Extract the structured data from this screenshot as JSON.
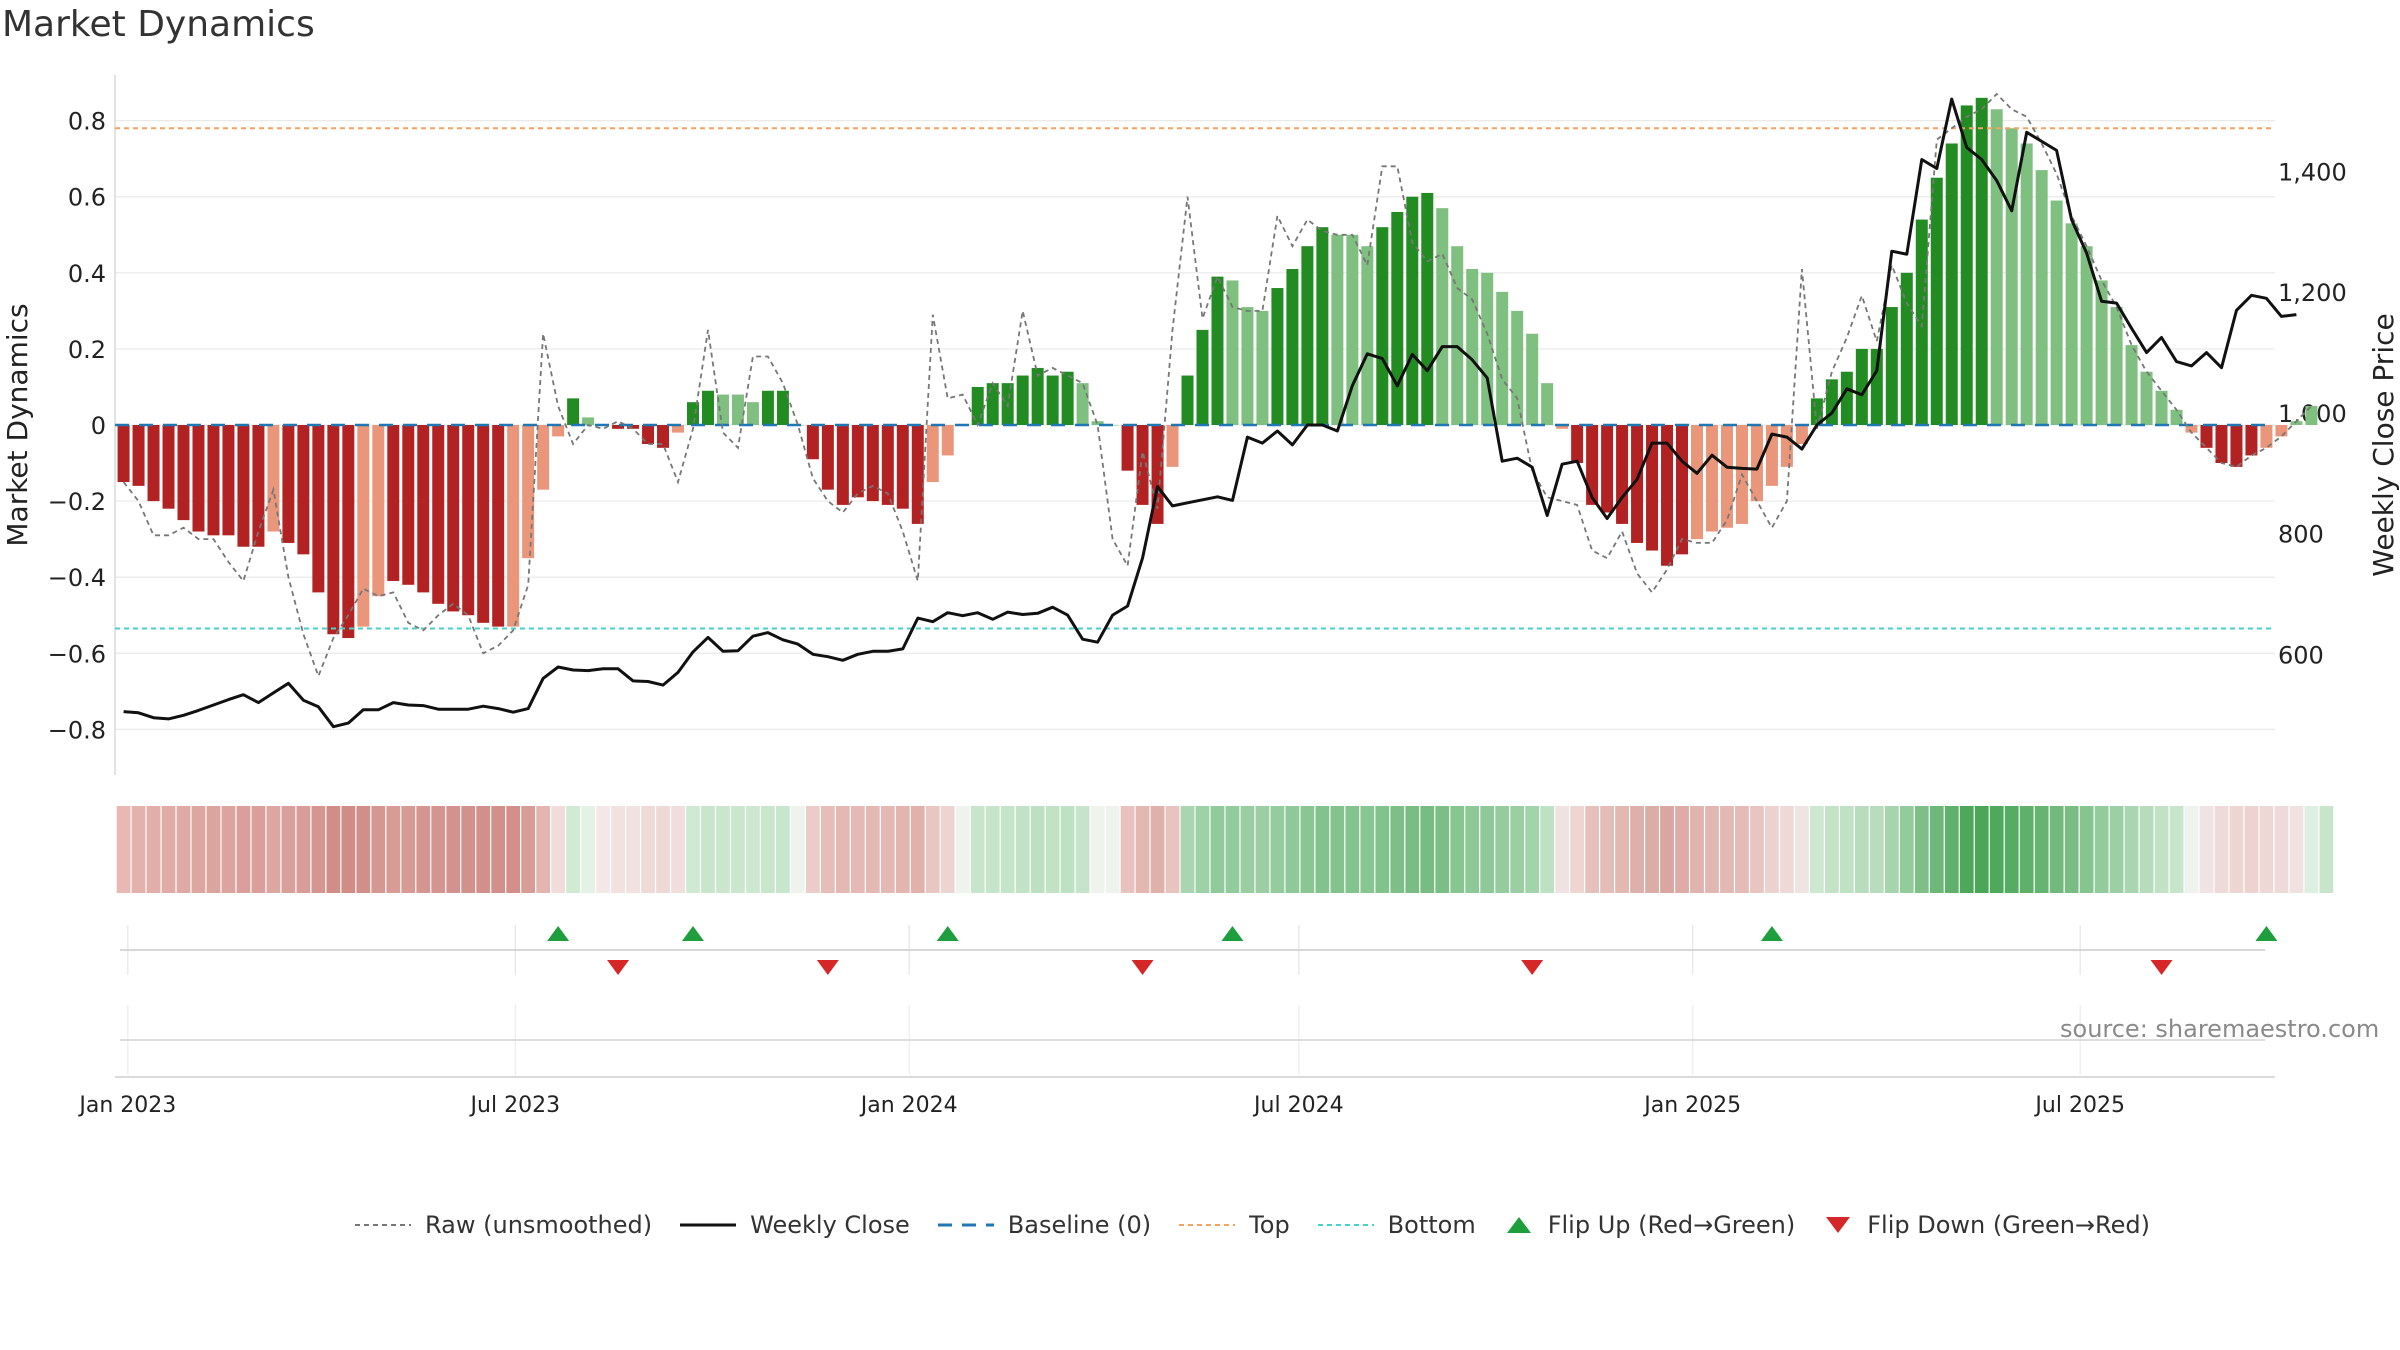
{
  "chart_title": "Market Dynamics",
  "source_text": "source: sharemaestro.com",
  "legend": {
    "raw": "Raw (unsmoothed)",
    "close": "Weekly Close",
    "baseline": "Baseline (0)",
    "top": "Top",
    "bottom": "Bottom",
    "flip_up": "Flip Up (Red→Green)",
    "flip_down": "Flip Down (Green→Red)"
  },
  "colors": {
    "strong_red": "#b22222",
    "weak_red": "#e9967a",
    "strong_green": "#228b22",
    "weak_green": "#7fbf7f",
    "raw": "#777777",
    "close": "#111111",
    "baseline": "#1f77b4",
    "top": "#f4a460",
    "bottom": "#48d1cc",
    "flip_up": "#1e9e3c",
    "flip_down": "#d62728"
  },
  "chart_data": {
    "type": "bar",
    "title": "Market Dynamics",
    "ylabel_left": "Market Dynamics",
    "ylabel_right": "Weekly Close Price",
    "ylim_left": [
      -0.92,
      0.92
    ],
    "ylim_right": [
      400,
      1560
    ],
    "yticks_left": [
      -0.8,
      -0.6,
      -0.4,
      -0.2,
      0,
      0.2,
      0.4,
      0.6,
      0.8
    ],
    "ytick_labels_left": [
      "−0.8",
      "−0.6",
      "−0.4",
      "−0.2",
      "0",
      "0.2",
      "0.4",
      "0.6",
      "0.8"
    ],
    "yticks_right": [
      600,
      800,
      1000,
      1200,
      1400
    ],
    "ytick_labels_right": [
      "600",
      "800",
      "1,000",
      "1,200",
      "1,400"
    ],
    "x_start": "2022-12-26",
    "x_end": "2025-09-30",
    "x_ticks": [
      {
        "date": "2023-01-01",
        "label": "Jan 2023"
      },
      {
        "date": "2023-07-01",
        "label": "Jul 2023"
      },
      {
        "date": "2024-01-01",
        "label": "Jan 2024"
      },
      {
        "date": "2024-07-01",
        "label": "Jul 2024"
      },
      {
        "date": "2025-01-01",
        "label": "Jan 2025"
      },
      {
        "date": "2025-07-01",
        "label": "Jul 2025"
      }
    ],
    "grid": true,
    "legend_position": "bottom",
    "first_week": "2022-12-30",
    "top_level": 0.78,
    "bottom_level": -0.535,
    "baseline_level": 0,
    "bar_values": [
      -0.15,
      -0.16,
      -0.2,
      -0.22,
      -0.25,
      -0.28,
      -0.29,
      -0.29,
      -0.32,
      -0.32,
      -0.28,
      -0.31,
      -0.34,
      -0.44,
      -0.55,
      -0.56,
      -0.53,
      -0.45,
      -0.41,
      -0.42,
      -0.44,
      -0.47,
      -0.49,
      -0.5,
      -0.52,
      -0.53,
      -0.53,
      -0.35,
      -0.17,
      -0.03,
      0.07,
      0.02,
      0.0,
      -0.01,
      -0.01,
      -0.05,
      -0.06,
      -0.02,
      0.06,
      0.09,
      0.08,
      0.08,
      0.06,
      0.09,
      0.09,
      0.0,
      -0.09,
      -0.17,
      -0.21,
      -0.19,
      -0.2,
      -0.21,
      -0.22,
      -0.26,
      -0.15,
      -0.08,
      0.0,
      0.1,
      0.11,
      0.11,
      0.13,
      0.15,
      0.13,
      0.14,
      0.11,
      0.01,
      0.0,
      -0.12,
      -0.21,
      -0.26,
      -0.11,
      0.13,
      0.25,
      0.39,
      0.38,
      0.31,
      0.3,
      0.36,
      0.41,
      0.47,
      0.52,
      0.5,
      0.5,
      0.47,
      0.52,
      0.56,
      0.6,
      0.61,
      0.57,
      0.47,
      0.41,
      0.4,
      0.35,
      0.3,
      0.24,
      0.11,
      -0.01,
      -0.1,
      -0.21,
      -0.23,
      -0.26,
      -0.31,
      -0.33,
      -0.37,
      -0.34,
      -0.3,
      -0.28,
      -0.27,
      -0.26,
      -0.2,
      -0.16,
      -0.11,
      -0.05,
      0.07,
      0.12,
      0.14,
      0.2,
      0.2,
      0.31,
      0.4,
      0.54,
      0.65,
      0.74,
      0.84,
      0.86,
      0.83,
      0.78,
      0.74,
      0.67,
      0.59,
      0.53,
      0.47,
      0.38,
      0.31,
      0.21,
      0.14,
      0.09,
      0.04,
      -0.02,
      -0.06,
      -0.1,
      -0.11,
      -0.08,
      -0.06,
      -0.03,
      0.01,
      0.05
    ],
    "bar_strength": [
      "s",
      "s",
      "s",
      "s",
      "s",
      "s",
      "s",
      "s",
      "s",
      "s",
      "w",
      "s",
      "s",
      "s",
      "s",
      "s",
      "w",
      "w",
      "s",
      "s",
      "s",
      "s",
      "s",
      "s",
      "s",
      "s",
      "w",
      "w",
      "w",
      "w",
      "s",
      "w",
      "w",
      "s",
      "s",
      "s",
      "s",
      "w",
      "s",
      "s",
      "w",
      "w",
      "w",
      "s",
      "s",
      "w",
      "s",
      "s",
      "s",
      "s",
      "s",
      "s",
      "s",
      "s",
      "w",
      "w",
      "w",
      "s",
      "s",
      "s",
      "s",
      "s",
      "s",
      "s",
      "w",
      "w",
      "w",
      "s",
      "s",
      "s",
      "w",
      "s",
      "s",
      "s",
      "w",
      "w",
      "w",
      "s",
      "s",
      "s",
      "s",
      "w",
      "w",
      "w",
      "s",
      "s",
      "s",
      "s",
      "w",
      "w",
      "w",
      "w",
      "w",
      "w",
      "w",
      "w",
      "w",
      "s",
      "s",
      "s",
      "s",
      "s",
      "s",
      "s",
      "s",
      "w",
      "w",
      "w",
      "w",
      "w",
      "w",
      "w",
      "w",
      "s",
      "s",
      "s",
      "s",
      "s",
      "s",
      "s",
      "s",
      "s",
      "s",
      "s",
      "s",
      "w",
      "w",
      "w",
      "w",
      "w",
      "w",
      "w",
      "w",
      "w",
      "w",
      "w",
      "w",
      "w",
      "w",
      "s",
      "s",
      "s",
      "s",
      "w",
      "w",
      "w",
      "w",
      "s",
      "w"
    ],
    "raw_values": [
      -0.15,
      -0.2,
      -0.29,
      -0.29,
      -0.27,
      -0.3,
      -0.3,
      -0.36,
      -0.41,
      -0.28,
      -0.17,
      -0.4,
      -0.55,
      -0.66,
      -0.56,
      -0.5,
      -0.43,
      -0.45,
      -0.44,
      -0.52,
      -0.54,
      -0.5,
      -0.47,
      -0.5,
      -0.6,
      -0.58,
      -0.54,
      -0.42,
      0.24,
      0.05,
      -0.05,
      0.0,
      -0.01,
      0.01,
      -0.01,
      -0.05,
      -0.05,
      -0.15,
      -0.01,
      0.25,
      -0.02,
      -0.06,
      0.18,
      0.18,
      0.11,
      0.0,
      -0.14,
      -0.2,
      -0.23,
      -0.18,
      -0.16,
      -0.18,
      -0.28,
      -0.41,
      0.29,
      0.07,
      0.08,
      0.0,
      0.11,
      0.05,
      0.3,
      0.13,
      0.15,
      0.13,
      0.11,
      0.0,
      -0.3,
      -0.37,
      -0.07,
      -0.22,
      0.25,
      0.6,
      0.28,
      0.39,
      0.31,
      0.3,
      0.3,
      0.55,
      0.47,
      0.54,
      0.51,
      0.5,
      0.5,
      0.42,
      0.68,
      0.68,
      0.48,
      0.43,
      0.45,
      0.36,
      0.33,
      0.24,
      0.12,
      0.07,
      -0.12,
      -0.19,
      -0.2,
      -0.21,
      -0.33,
      -0.35,
      -0.28,
      -0.39,
      -0.44,
      -0.38,
      -0.3,
      -0.31,
      -0.31,
      -0.25,
      -0.13,
      -0.2,
      -0.27,
      -0.2,
      0.41,
      -0.01,
      0.14,
      0.23,
      0.34,
      0.22,
      0.42,
      0.32,
      0.26,
      0.75,
      0.78,
      0.81,
      0.83,
      0.87,
      0.83,
      0.81,
      0.74,
      0.66,
      0.55,
      0.47,
      0.38,
      0.31,
      0.21,
      0.14,
      0.09,
      0.04,
      -0.02,
      -0.06,
      -0.1,
      -0.11,
      -0.08,
      -0.06,
      -0.03,
      0.01,
      0.05
    ],
    "close_values": [
      505,
      503,
      495,
      493,
      499,
      507,
      516,
      525,
      533,
      520,
      536,
      552,
      524,
      513,
      480,
      486,
      508,
      508,
      520,
      516,
      515,
      509,
      509,
      509,
      514,
      510,
      504,
      510,
      560,
      579,
      574,
      573,
      576,
      576,
      556,
      555,
      549,
      570,
      604,
      628,
      605,
      606,
      630,
      636,
      624,
      617,
      600,
      596,
      590,
      600,
      605,
      605,
      609,
      660,
      654,
      669,
      664,
      669,
      658,
      670,
      666,
      668,
      678,
      665,
      625,
      620,
      665,
      680,
      760,
      878,
      846,
      851,
      856,
      861,
      855,
      960,
      950,
      970,
      947,
      980,
      980,
      970,
      1045,
      1098,
      1090,
      1045,
      1097,
      1070,
      1110,
      1110,
      1088,
      1058,
      920,
      925,
      910,
      830,
      915,
      920,
      860,
      825,
      860,
      890,
      950,
      950,
      920,
      900,
      930,
      910,
      908,
      907,
      965,
      960,
      940,
      980,
      1000,
      1040,
      1030,
      1070,
      1268,
      1263,
      1420,
      1405,
      1520,
      1440,
      1420,
      1385,
      1335,
      1465,
      1450,
      1435,
      1320,
      1265,
      1185,
      1182,
      1140,
      1100,
      1125,
      1085,
      1078,
      1100,
      1075,
      1170,
      1195,
      1190,
      1160,
      1163
    ],
    "band_hex": [
      "#e7b8b4",
      "#e3b2ad",
      "#e1aeaa",
      "#e0aca7",
      "#ddaaa5",
      "#dca6a1",
      "#dba49f",
      "#dba49f",
      "#da9f9a",
      "#da9f9a",
      "#dca6a1",
      "#d99f9b",
      "#d89d98",
      "#d59690",
      "#d18e88",
      "#d18c86",
      "#d08f88",
      "#d59791",
      "#d89b95",
      "#d89a94",
      "#d59691",
      "#d49490",
      "#d3928d",
      "#d3918c",
      "#d3908b",
      "#d38f8a",
      "#d38f8a",
      "#d89c96",
      "#e4b5b0",
      "#f0dcda",
      "#d0ead4",
      "#e4f2e6",
      "#f3e8e7",
      "#f1e1df",
      "#f1e1df",
      "#efdad8",
      "#efd9d7",
      "#f0dedc",
      "#cfe9d3",
      "#c8e6cc",
      "#cae7ce",
      "#cae7ce",
      "#cde8d1",
      "#c8e6cc",
      "#c8e6cc",
      "#eef3ee",
      "#ebccc9",
      "#e6bdb8",
      "#e4b9b4",
      "#e5bab6",
      "#e4b9b4",
      "#e4b8b3",
      "#e3b5b0",
      "#e1b1ac",
      "#e8c6c2",
      "#edd4d1",
      "#eef3ee",
      "#c6e5ca",
      "#c5e4c9",
      "#c5e4c9",
      "#c1e2c5",
      "#bde0c2",
      "#c1e2c5",
      "#bfe1c3",
      "#c5e4c9",
      "#eef3ee",
      "#eef3ee",
      "#e8c2be",
      "#e3b7b2",
      "#e0b0ab",
      "#e8c4c0",
      "#a9d6b0",
      "#9fd1a7",
      "#92cb9b",
      "#93cb9c",
      "#9ace a2",
      "#9bcfa3",
      "#95cc9e",
      "#8fc999",
      "#89c693",
      "#82c28c",
      "#84c38e",
      "#84c38e",
      "#87c591",
      "#82c28c",
      "#7dbf87",
      "#79bd84",
      "#78bc83",
      "#7cbf86",
      "#87c591",
      "#8dc897",
      "#8fc999",
      "#95cc9e",
      "#9bcfa3",
      "#a3d3ab",
      "#bfe1c3",
      "#efe2e1",
      "#eed5d2",
      "#e6c0bc",
      "#e4bdb9",
      "#e2b8b3",
      "#deb0ab",
      "#dcaca7",
      "#daa6a1",
      "#ddaca7",
      "#e0b3ae",
      "#e2b6b2",
      "#e3b9b4",
      "#e4bbb7",
      "#e9c5c2",
      "#ecd1ce",
      "#efd9d7",
      "#eee4e3",
      "#cde8d1",
      "#c3e3c7",
      "#c0e2c4",
      "#b8dcbd",
      "#b8dcbd",
      "#a6d4ad",
      "#94cb9d",
      "#7dbf87",
      "#6db878",
      "#5eb06a",
      "#4ea85b",
      "#4ba659",
      "#4fa95d",
      "#55ac62",
      "#5eb06a",
      "#66b471",
      "#71b97c",
      "#79bd84",
      "#86c490",
      "#93cb9c",
      "#9ccfa4",
      "#a9d6b0",
      "#b7dcbb",
      "#c1e2c5",
      "#c7e5cb",
      "#ecf4ed",
      "#efe4e3",
      "#eedad8",
      "#edd5d2",
      "#ecd3d0",
      "#eed8d5",
      "#eedad8",
      "#efe2e0",
      "#ddf0e0",
      "#c6e5ca"
    ],
    "flip_up_dates": [
      "2023-07-21",
      "2023-09-22",
      "2024-01-19",
      "2024-05-31",
      "2025-02-07",
      "2025-09-26"
    ],
    "flip_down_dates": [
      "2023-08-18",
      "2023-11-24",
      "2024-04-19",
      "2024-10-18",
      "2025-08-08"
    ]
  }
}
